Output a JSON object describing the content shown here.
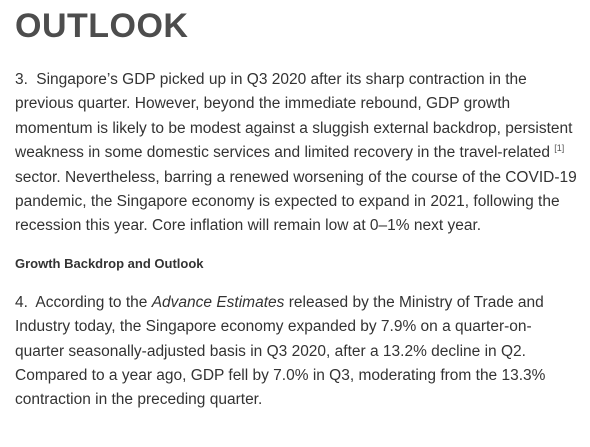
{
  "heading": "OUTLOOK",
  "para1": {
    "number": "3.",
    "text_before_footnote": "Singapore’s GDP picked up in Q3 2020 after its sharp contraction in the previous quarter. However, beyond the immediate rebound, GDP growth momentum is likely to be modest against a sluggish external backdrop, persistent weakness in some domestic services and limited recovery in the travel-related",
    "footnote": "[1]",
    "text_after_footnote": "sector. Nevertheless, barring a renewed worsening of the course of the COVID-19 pandemic, the Singapore economy is expected to expand in 2021, following the recession this year. Core inflation will remain low at 0–1% next year."
  },
  "subheading": "Growth Backdrop and Outlook",
  "para2": {
    "number": "4.",
    "text_start": "According to the",
    "italic_text": "Advance Estimates",
    "text_end": "released by the Ministry of Trade and Industry today, the Singapore economy expanded by 7.9% on a quarter-on-quarter seasonally-adjusted basis in Q3 2020, after a 13.2% decline in Q2. Compared to a year ago, GDP fell by 7.0% in Q3, moderating from the 13.3% contraction in the preceding quarter."
  }
}
